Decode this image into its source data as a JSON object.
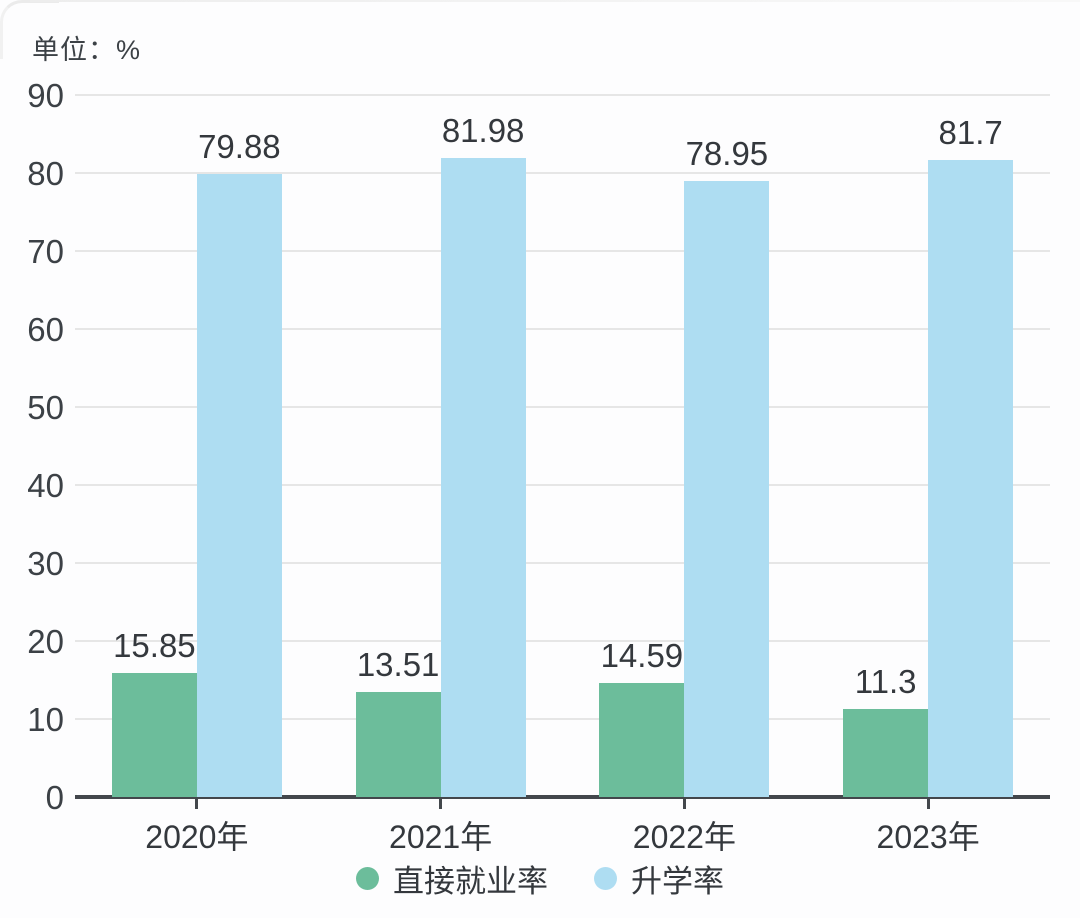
{
  "unit_label": "单位：%",
  "colors": {
    "employment_green": "#6cbd9b",
    "enrollment_blue": "#aeddf2",
    "text": "#34383d",
    "grid": "#e6e6e6",
    "axis": "#43474c",
    "background": "#fdfdfe"
  },
  "chart_data": {
    "type": "bar",
    "title": "",
    "unit": "%",
    "unit_label": "单位：%",
    "categories": [
      "2020年",
      "2021年",
      "2022年",
      "2023年"
    ],
    "series": [
      {
        "name": "直接就业率",
        "color": "#6cbd9b",
        "values": [
          15.85,
          13.51,
          14.59,
          11.3
        ]
      },
      {
        "name": "升学率",
        "color": "#aeddf2",
        "values": [
          79.88,
          81.98,
          78.95,
          81.7
        ]
      }
    ],
    "ylim": [
      0,
      90
    ],
    "ytick_step": 10,
    "ytick_labels": [
      "0",
      "10",
      "20",
      "30",
      "40",
      "50",
      "60",
      "70",
      "80",
      "90"
    ],
    "grid": true,
    "legend_position": "bottom",
    "bar_value_labels_shown": true
  }
}
